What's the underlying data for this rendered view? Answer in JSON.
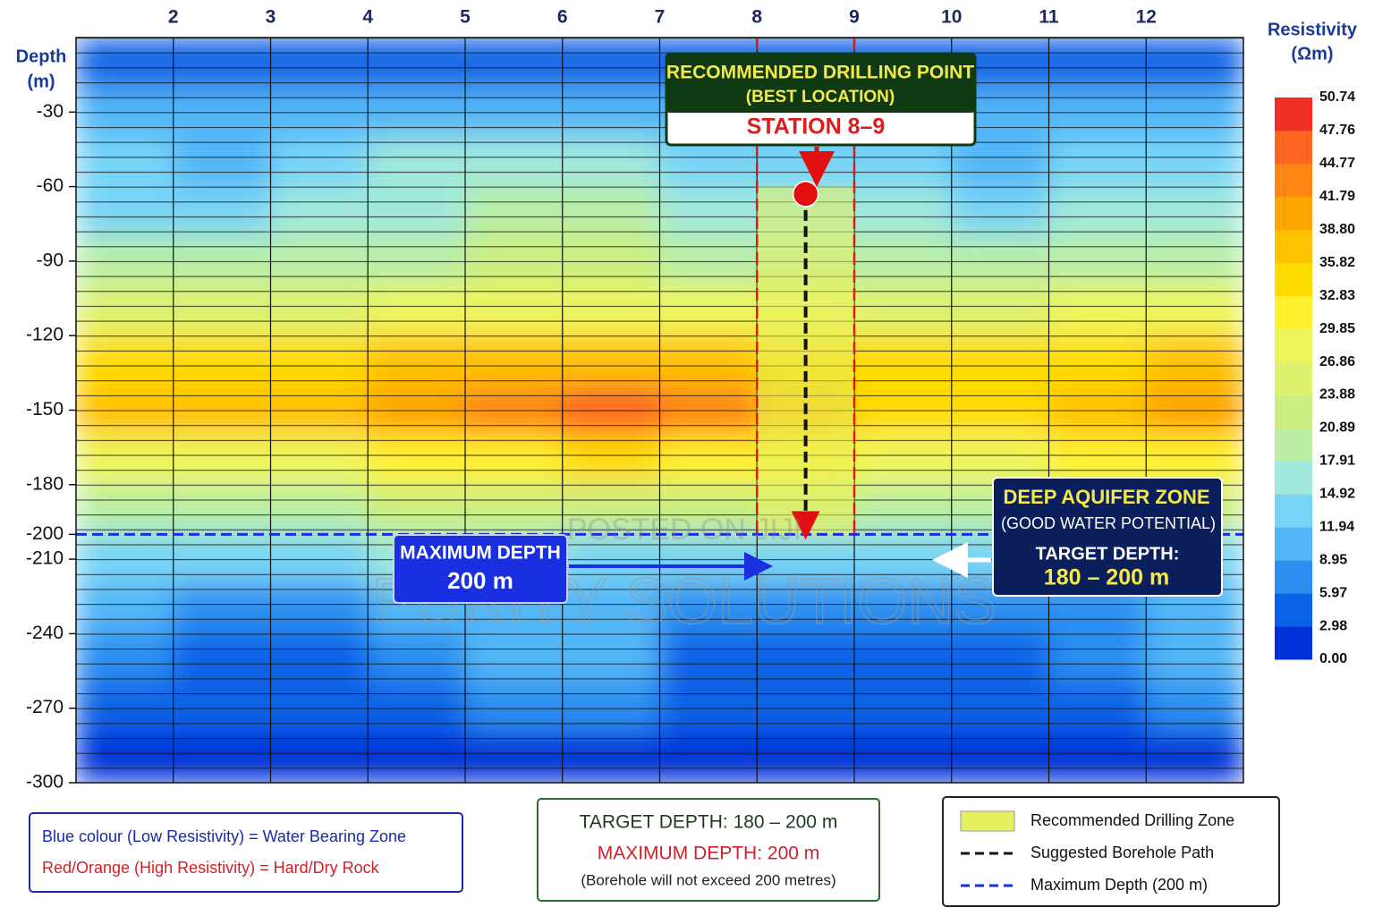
{
  "chart_data": {
    "type": "contour",
    "xlim": [
      1,
      13
    ],
    "xticks": [
      2,
      3,
      4,
      5,
      6,
      7,
      8,
      9,
      10,
      11,
      12
    ],
    "ylabel": [
      "Depth",
      "(m)"
    ],
    "ylim": [
      0,
      -300
    ],
    "yticks": [
      -30,
      -60,
      -90,
      -120,
      -150,
      -180,
      -200,
      -210,
      -240,
      -270,
      -300
    ],
    "x": [
      1.5,
      2.5,
      3.5,
      4.5,
      5.5,
      6.5,
      7.5,
      8.5,
      9.5,
      10.5,
      11.5,
      12.5
    ],
    "y": [
      -10,
      -30,
      -50,
      -70,
      -90,
      -110,
      -130,
      -150,
      -170,
      -190,
      -210,
      -230,
      -250,
      -270,
      -290
    ],
    "z": [
      [
        3,
        3,
        4,
        4,
        5,
        5,
        5,
        4,
        3,
        3,
        4,
        4
      ],
      [
        9,
        9,
        9,
        10,
        11,
        11,
        10,
        10,
        9,
        9,
        10,
        10
      ],
      [
        12,
        11,
        12,
        15,
        16,
        15,
        14,
        14,
        12,
        10,
        12,
        12
      ],
      [
        14,
        14,
        15,
        17,
        18,
        18,
        17,
        17,
        15,
        13,
        15,
        15
      ],
      [
        18,
        18,
        18,
        20,
        21,
        21,
        20,
        20,
        19,
        18,
        19,
        19
      ],
      [
        26,
        26,
        26,
        27,
        28,
        28,
        27,
        27,
        26,
        26,
        27,
        27
      ],
      [
        33,
        33,
        34,
        36,
        37,
        38,
        36,
        35,
        33,
        33,
        35,
        36
      ],
      [
        36,
        36,
        37,
        39,
        42,
        47,
        42,
        38,
        35,
        35,
        38,
        40
      ],
      [
        28,
        28,
        29,
        30,
        32,
        34,
        31,
        30,
        28,
        28,
        30,
        31
      ],
      [
        20,
        20,
        20,
        21,
        22,
        22,
        21,
        21,
        20,
        20,
        21,
        21
      ],
      [
        13,
        13,
        14,
        15,
        15,
        14,
        13,
        13,
        13,
        13,
        13,
        13
      ],
      [
        9,
        8,
        8,
        10,
        11,
        10,
        7,
        6,
        6,
        6,
        8,
        10
      ],
      [
        6,
        4,
        4,
        8,
        10,
        9,
        4,
        3,
        3,
        3,
        6,
        9
      ],
      [
        5,
        4,
        4,
        5,
        6,
        6,
        4,
        4,
        4,
        4,
        5,
        6
      ],
      [
        2,
        2,
        2,
        2,
        2,
        2,
        2,
        2,
        2,
        2,
        2,
        2
      ]
    ],
    "colorbar": {
      "title": [
        "Resistivity",
        "(Ωm)"
      ],
      "ticks": [
        {
          "value": 0,
          "label": "0.00"
        },
        2.98,
        5.97,
        8.95,
        11.94,
        14.92,
        17.91,
        20.89,
        23.88,
        26.86,
        29.85,
        32.83,
        35.82,
        {
          "value": 38.8,
          "label": "38.80"
        },
        41.79,
        44.77,
        47.76,
        50.74
      ],
      "colors": [
        "#0030d8",
        "#0a62e6",
        "#2c8ef0",
        "#52b6f6",
        "#78d4f6",
        "#a0e8dc",
        "#b9eea4",
        "#cbef80",
        "#def26e",
        "#eef55c",
        "#fff030",
        "#ffdc00",
        "#ffc200",
        "#ffa600",
        "#ff8814",
        "#ff6622",
        "#f03022"
      ]
    },
    "drilling_zone": {
      "x": [
        8,
        9
      ],
      "y": [
        -60,
        -200
      ],
      "color": "#e6f060"
    },
    "drilling_point": {
      "x": 8.5,
      "y": -63
    },
    "max_depth": -200
  },
  "callout_drilling": {
    "title": "RECOMMENDED DRILLING POINT",
    "subtitle": "(BEST LOCATION)",
    "station": "STATION 8–9"
  },
  "callout_max_depth": {
    "title": "MAXIMUM DEPTH",
    "value": "200 m"
  },
  "callout_aquifer": {
    "title": "DEEP AQUIFER ZONE",
    "subtitle": "(GOOD WATER POTENTIAL)",
    "label": "TARGET DEPTH:",
    "value": "180 – 200 m"
  },
  "note_colour": {
    "blue": "Blue colour (Low Resistivity) = Water Bearing Zone",
    "red": "Red/Orange (High Resistivity) = Hard/Dry Rock"
  },
  "note_depth": {
    "target": "TARGET DEPTH: 180 – 200 m",
    "maximum": "MAXIMUM DEPTH: 200 m",
    "remark": "(Borehole will not exceed 200 metres)"
  },
  "legend": {
    "zone": "Recommended Drilling Zone",
    "path": "Suggested Borehole Path",
    "max": "Maximum Depth (200 m)"
  },
  "watermarks": [
    "POSTED ON JIJI",
    "PURITY SOLUTIONS"
  ]
}
